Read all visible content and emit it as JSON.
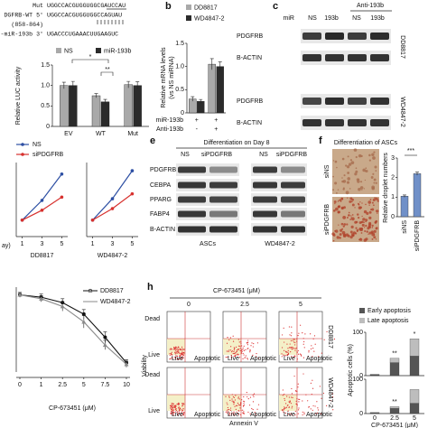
{
  "panel_a": {
    "seq": [
      {
        "label": "Mut",
        "seq": "UGGCCACGUGGUGGCGAUCCAU"
      },
      {
        "label": "DGFRB-WT 5'",
        "seq": "UGGCCACGUGGUGGCCAGUAU"
      },
      {
        "label": "(858-864)"
      },
      {
        "label": "-miR-193b 3'",
        "seq": "UGACCCUGAAACUUGAAGUC"
      }
    ],
    "chart": {
      "type": "bar",
      "ylabel": "Relative LUC activity",
      "categories": [
        "EV",
        "WT",
        "Mut"
      ],
      "series": [
        {
          "name": "NS",
          "color": "#a9a9a9",
          "values": [
            1.0,
            0.75,
            1.02
          ],
          "errors": [
            0.08,
            0.05,
            0.08
          ]
        },
        {
          "name": "miR-193b",
          "color": "#2b2b2b",
          "values": [
            1.0,
            0.6,
            1.0
          ],
          "errors": [
            0.1,
            0.06,
            0.09
          ]
        }
      ],
      "ylim": [
        0,
        1.5
      ],
      "yticks": [
        0,
        0.5,
        {
          "value": 1,
          "label": "1.0"
        },
        1.5
      ],
      "significance": [
        "*",
        "**"
      ]
    }
  },
  "panel_b": {
    "letter": "b",
    "chart": {
      "type": "bar",
      "ylabel": "Relative mRNA levels",
      "ylabel2": "(vs NS miRNA)",
      "conditions": [
        {
          "label": "miR-193b",
          "marks": [
            "+",
            "+"
          ]
        },
        {
          "label": "Anti-193b",
          "marks": [
            "-",
            "+"
          ]
        }
      ],
      "series": [
        {
          "name": "DD8817",
          "color": "#a9a9a9",
          "values": [
            0.3,
            1.05
          ],
          "errors": [
            0.05,
            0.12
          ]
        },
        {
          "name": "WD4847-2",
          "color": "#2b2b2b",
          "values": [
            0.25,
            1.0
          ],
          "errors": [
            0.04,
            0.1
          ]
        }
      ],
      "ylim": [
        0,
        1.5
      ],
      "yticks": [
        0,
        0.5,
        {
          "value": 1,
          "label": "1.0"
        },
        1.5
      ]
    }
  },
  "panel_c": {
    "letter": "c",
    "group": "Anti-193b",
    "row_title": "miR",
    "lanes": [
      "NS",
      "193b",
      "NS",
      "193b"
    ],
    "blots": [
      {
        "label": "PDGFRB"
      },
      {
        "label": "B-ACTIN"
      },
      {
        "label": "PDGFRB"
      },
      {
        "label": "B-ACTIN"
      }
    ],
    "cell_lines": [
      "DD8817",
      "WD4847-2"
    ]
  },
  "panel_d": {
    "legend": [
      {
        "name": "NS",
        "color": "#2d4fa3"
      },
      {
        "name": "siPDGFRB",
        "color": "#d7312e"
      }
    ],
    "xlabel": "ay)",
    "charts": [
      {
        "type": "line",
        "name": "DD8817",
        "x": [
          1,
          3,
          5
        ],
        "xlim": [
          0.4,
          5.6
        ],
        "ylim": [
          0,
          4.5
        ],
        "series": [
          {
            "values": [
              1,
              2.2,
              3.8
            ]
          },
          {
            "values": [
              1,
              1.6,
              2.4
            ]
          }
        ]
      },
      {
        "type": "line",
        "name": "WD4847-2",
        "x": [
          1,
          3,
          5
        ],
        "xlim": [
          0.4,
          5.6
        ],
        "ylim": [
          0,
          4.5
        ],
        "series": [
          {
            "values": [
              1,
              2.3,
              4.0
            ]
          },
          {
            "values": [
              1,
              1.7,
              2.6
            ]
          }
        ]
      }
    ]
  },
  "panel_e": {
    "letter": "e",
    "title": "Differentiation on Day 8",
    "lanes": [
      "NS",
      "siPDGFRB",
      "NS",
      "siPDGFRB"
    ],
    "rows": [
      "PDGFRB",
      "CEBPA",
      "PPARG",
      "FABP4",
      "B-ACTIN"
    ],
    "groups": [
      "ASCs",
      "WD4847-2"
    ]
  },
  "panel_f": {
    "letter": "f",
    "title": "Differentiation of ASCs",
    "images": [
      "siNS",
      "siPDGFRB"
    ],
    "chart": {
      "type": "bar",
      "ylabel": "Relative droplet numbers",
      "categories": [
        "siNS",
        "siPDGFRB"
      ],
      "values": [
        1.05,
        2.2
      ],
      "errors": [
        0.06,
        0.08
      ],
      "color": "#7090c8",
      "ylim": [
        0,
        3
      ],
      "yticks": [
        0,
        1,
        2,
        3
      ],
      "significance": "***"
    }
  },
  "panel_g": {
    "chart": {
      "type": "line",
      "xlabel": "CP-673451 (μM)",
      "categories": [
        "0",
        "1",
        "2.5",
        "5",
        "7.5",
        "10"
      ],
      "ylim": [
        0,
        110
      ],
      "series": [
        {
          "name": "DD8817",
          "color": "#111111",
          "values": [
            100,
            97,
            90,
            75,
            45,
            12
          ],
          "errors": [
            3,
            4,
            5,
            6,
            7,
            4
          ]
        },
        {
          "name": "WD4847-2",
          "color": "#8a8a8a",
          "values": [
            100,
            95,
            85,
            65,
            35,
            10
          ],
          "errors": [
            3,
            4,
            6,
            8,
            6,
            4
          ]
        }
      ]
    }
  },
  "panel_h": {
    "letter": "h",
    "title": "CP-673451 (μM)",
    "doses": [
      "0",
      "2.5",
      "5"
    ],
    "ylabel": "Viability",
    "xlabel": "Annexin V",
    "gate_y": [
      "Dead",
      "Live"
    ],
    "gate_x": [
      "Live",
      "Apoptotic"
    ],
    "cell_lines": [
      "DD8817",
      "WD4847-2"
    ],
    "chart": {
      "type": "stacked-bar",
      "ylabel": "Apoptotic cells (%)",
      "xlabel": "CP-673451 (μM)",
      "categories": [
        "0",
        "2.5",
        "5"
      ],
      "ylim": [
        0,
        100
      ],
      "yticks": [
        0,
        100
      ],
      "panels": [
        {
          "series": [
            {
              "name": "Early apoptosis",
              "color": "#555555",
              "values": [
                2,
                30,
                45
              ]
            },
            {
              "name": "Late apoptosis",
              "color": "#bdbdbd",
              "values": [
                1,
                10,
                40
              ]
            }
          ],
          "significance": [
            "**",
            "*"
          ]
        },
        {
          "series": [
            {
              "name": "Early apoptosis",
              "color": "#555555",
              "values": [
                2,
                15,
                30
              ]
            },
            {
              "name": "Late apoptosis",
              "color": "#bdbdbd",
              "values": [
                1,
                5,
                40
              ]
            }
          ],
          "significance": [
            "**"
          ]
        }
      ]
    }
  }
}
